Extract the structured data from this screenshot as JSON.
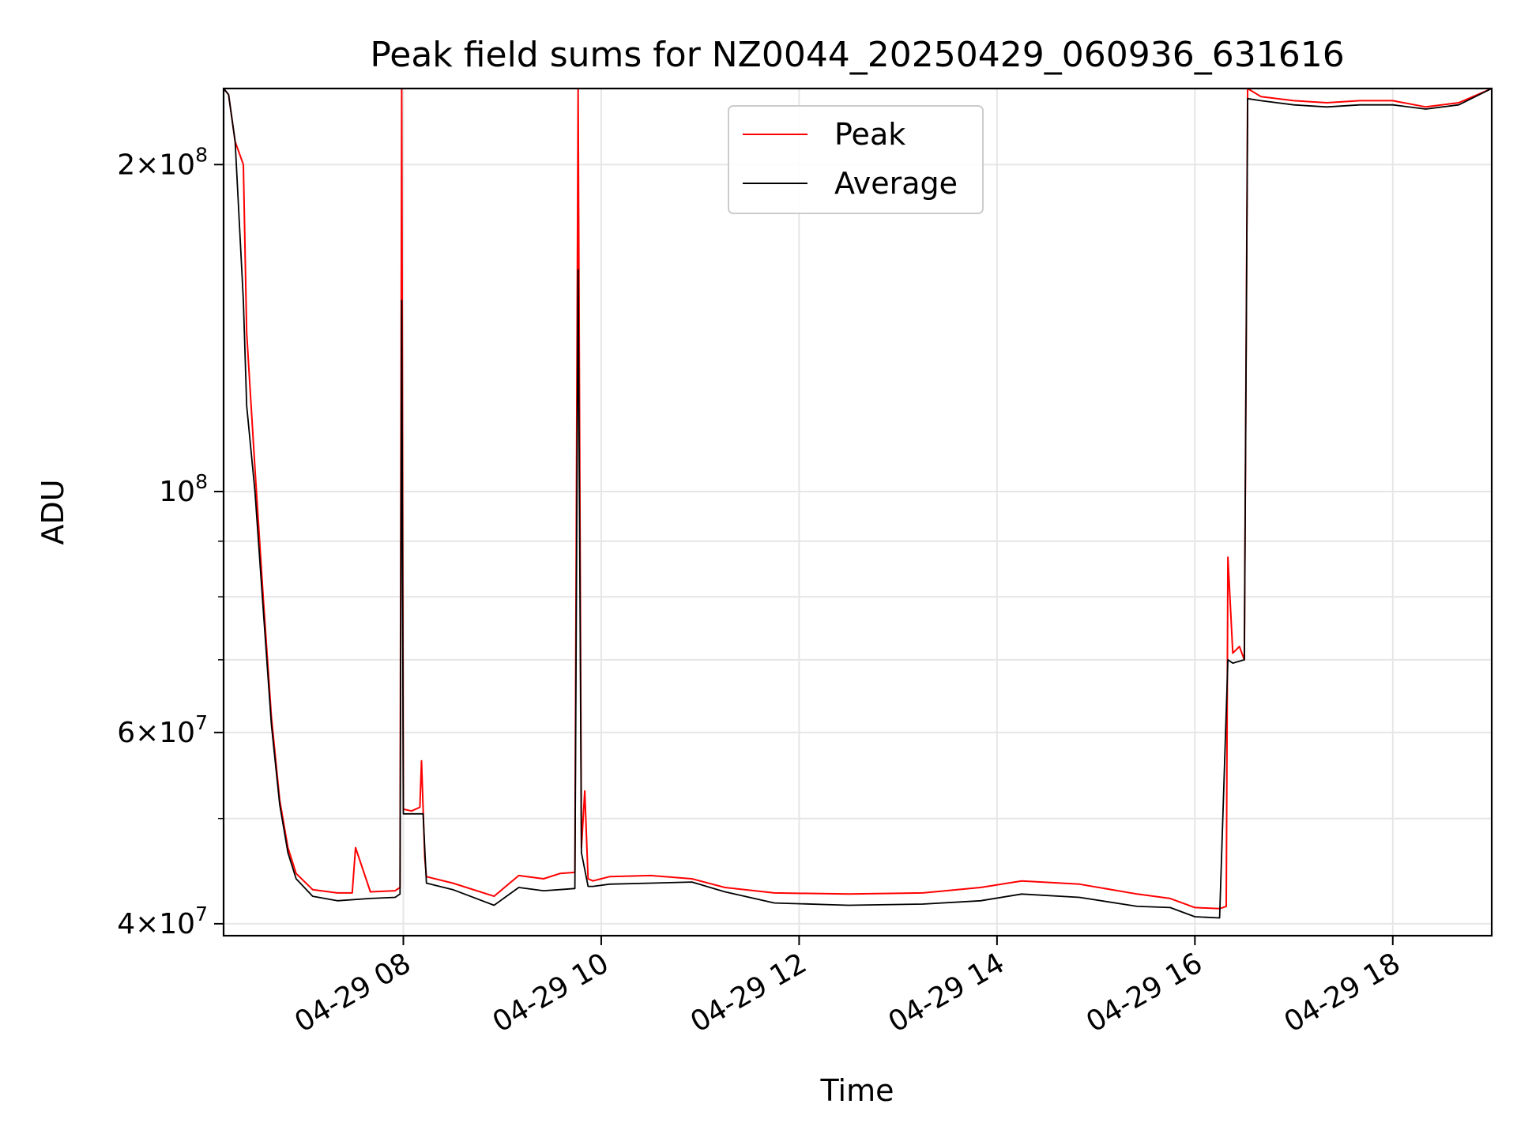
{
  "chart_data": {
    "type": "line",
    "title": "Peak field sums for NZ0044_20250429_060936_631616",
    "xlabel": "Time",
    "ylabel": "ADU",
    "yscale": "log",
    "grid": true,
    "legend_position": "top-center",
    "xlim": [
      "2025-04-29 06:11",
      "2025-04-29 19:00"
    ],
    "ylim": [
      39000000,
      235000000
    ],
    "x_ticks": [
      {
        "value": "2025-04-29 08:00",
        "label": "04-29 08"
      },
      {
        "value": "2025-04-29 10:00",
        "label": "04-29 10"
      },
      {
        "value": "2025-04-29 12:00",
        "label": "04-29 12"
      },
      {
        "value": "2025-04-29 14:00",
        "label": "04-29 14"
      },
      {
        "value": "2025-04-29 16:00",
        "label": "04-29 16"
      },
      {
        "value": "2025-04-29 18:00",
        "label": "04-29 18"
      }
    ],
    "y_major_ticks": [
      {
        "value": 40000000,
        "mantissa": "4",
        "exp": "7"
      },
      {
        "value": 60000000,
        "mantissa": "6",
        "exp": "7"
      },
      {
        "value": 100000000,
        "mantissa": "",
        "exp": "8"
      },
      {
        "value": 200000000,
        "mantissa": "2",
        "exp": "8"
      }
    ],
    "y_minor_ticks": [
      50000000,
      70000000,
      80000000,
      90000000
    ],
    "series": [
      {
        "name": "Peak",
        "color": "#ff0000",
        "x": [
          "2025-04-29 06:11",
          "2025-04-29 06:14",
          "2025-04-29 06:18",
          "2025-04-29 06:23",
          "2025-04-29 06:25",
          "2025-04-29 06:30",
          "2025-04-29 06:35",
          "2025-04-29 06:40",
          "2025-04-29 06:45",
          "2025-04-29 06:50",
          "2025-04-29 06:55",
          "2025-04-29 07:05",
          "2025-04-29 07:20",
          "2025-04-29 07:29",
          "2025-04-29 07:31",
          "2025-04-29 07:40",
          "2025-04-29 07:55",
          "2025-04-29 07:58",
          "2025-04-29 07:59",
          "2025-04-29 08:00",
          "2025-04-29 08:05",
          "2025-04-29 08:10",
          "2025-04-29 08:11",
          "2025-04-29 08:13",
          "2025-04-29 08:14",
          "2025-04-29 08:30",
          "2025-04-29 08:55",
          "2025-04-29 09:10",
          "2025-04-29 09:25",
          "2025-04-29 09:35",
          "2025-04-29 09:44",
          "2025-04-29 09:46",
          "2025-04-29 09:48",
          "2025-04-29 09:50",
          "2025-04-29 09:52",
          "2025-04-29 09:55",
          "2025-04-29 10:05",
          "2025-04-29 10:30",
          "2025-04-29 10:55",
          "2025-04-29 11:15",
          "2025-04-29 11:45",
          "2025-04-29 12:30",
          "2025-04-29 13:15",
          "2025-04-29 13:50",
          "2025-04-29 14:15",
          "2025-04-29 14:50",
          "2025-04-29 15:25",
          "2025-04-29 15:45",
          "2025-04-29 16:00",
          "2025-04-29 16:15",
          "2025-04-29 16:19",
          "2025-04-29 16:20",
          "2025-04-29 16:23",
          "2025-04-29 16:27",
          "2025-04-29 16:30",
          "2025-04-29 16:32",
          "2025-04-29 16:40",
          "2025-04-29 17:00",
          "2025-04-29 17:20",
          "2025-04-29 17:40",
          "2025-04-29 18:00",
          "2025-04-29 18:20",
          "2025-04-29 18:40",
          "2025-04-29 19:00"
        ],
        "y": [
          235000000,
          232000000,
          210000000,
          200000000,
          140000000,
          105000000,
          80000000,
          62000000,
          52000000,
          47000000,
          44500000,
          43000000,
          42700000,
          42700000,
          47000000,
          42800000,
          42900000,
          43200000,
          235000000,
          51000000,
          50800000,
          51200000,
          56500000,
          46000000,
          44200000,
          43600000,
          42400000,
          44300000,
          44000000,
          44500000,
          44600000,
          235000000,
          47000000,
          53000000,
          44000000,
          43800000,
          44200000,
          44300000,
          44000000,
          43200000,
          42700000,
          42600000,
          42700000,
          43200000,
          43800000,
          43500000,
          42600000,
          42200000,
          41400000,
          41300000,
          41500000,
          87000000,
          71000000,
          72000000,
          70000000,
          235000000,
          231000000,
          229000000,
          228000000,
          229000000,
          229000000,
          226000000,
          228000000,
          235000000
        ]
      },
      {
        "name": "Average",
        "color": "#000000",
        "x": [
          "2025-04-29 06:11",
          "2025-04-29 06:14",
          "2025-04-29 06:18",
          "2025-04-29 06:23",
          "2025-04-29 06:25",
          "2025-04-29 06:30",
          "2025-04-29 06:35",
          "2025-04-29 06:40",
          "2025-04-29 06:45",
          "2025-04-29 06:50",
          "2025-04-29 06:55",
          "2025-04-29 07:05",
          "2025-04-29 07:20",
          "2025-04-29 07:40",
          "2025-04-29 07:55",
          "2025-04-29 07:58",
          "2025-04-29 07:59",
          "2025-04-29 08:00",
          "2025-04-29 08:05",
          "2025-04-29 08:12",
          "2025-04-29 08:14",
          "2025-04-29 08:30",
          "2025-04-29 08:55",
          "2025-04-29 09:10",
          "2025-04-29 09:25",
          "2025-04-29 09:35",
          "2025-04-29 09:44",
          "2025-04-29 09:46",
          "2025-04-29 09:48",
          "2025-04-29 09:52",
          "2025-04-29 09:55",
          "2025-04-29 10:05",
          "2025-04-29 10:30",
          "2025-04-29 10:55",
          "2025-04-29 11:15",
          "2025-04-29 11:45",
          "2025-04-29 12:30",
          "2025-04-29 13:15",
          "2025-04-29 13:50",
          "2025-04-29 14:15",
          "2025-04-29 14:50",
          "2025-04-29 15:25",
          "2025-04-29 15:45",
          "2025-04-29 16:00",
          "2025-04-29 16:15",
          "2025-04-29 16:20",
          "2025-04-29 16:23",
          "2025-04-29 16:30",
          "2025-04-29 16:32",
          "2025-04-29 16:40",
          "2025-04-29 17:00",
          "2025-04-29 17:20",
          "2025-04-29 17:40",
          "2025-04-29 18:00",
          "2025-04-29 18:20",
          "2025-04-29 18:40",
          "2025-04-29 19:00"
        ],
        "y": [
          235000000,
          232000000,
          210000000,
          150000000,
          120000000,
          100000000,
          78000000,
          61000000,
          51500000,
          46500000,
          44000000,
          42400000,
          42000000,
          42200000,
          42300000,
          42600000,
          150000000,
          50500000,
          50500000,
          50500000,
          43600000,
          43000000,
          41600000,
          43200000,
          42900000,
          43000000,
          43100000,
          160000000,
          46500000,
          43300000,
          43300000,
          43500000,
          43600000,
          43700000,
          42800000,
          41800000,
          41600000,
          41700000,
          42000000,
          42600000,
          42300000,
          41500000,
          41400000,
          40600000,
          40500000,
          70000000,
          69500000,
          70000000,
          230000000,
          229000000,
          227000000,
          226000000,
          227000000,
          227000000,
          225000000,
          227000000,
          235000000
        ]
      }
    ]
  }
}
